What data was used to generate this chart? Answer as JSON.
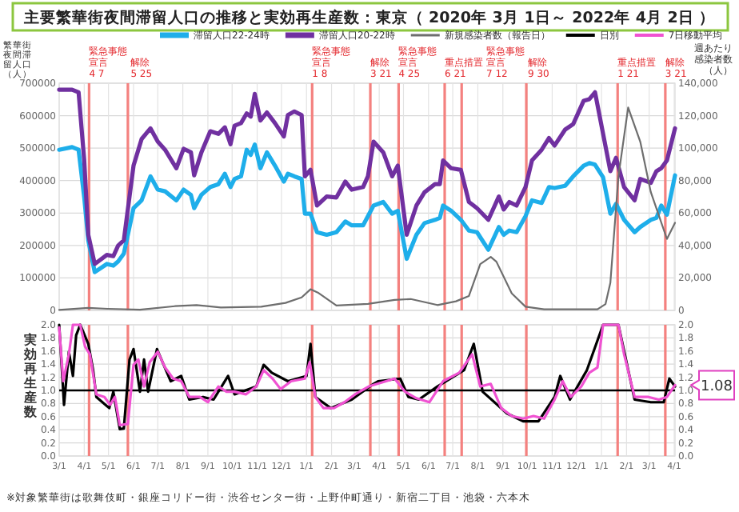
{
  "chart_data": [
    {
      "type": "line",
      "title": "主要繁華街夜間滞留人口の推移と実効再生産数：東京（ 2020年 3月 1日～ 2022年 4月 2日 ）",
      "ylabel": "繁華街夜間滞留人口（人）",
      "y2label": "週あたり感染者数（人）",
      "xlim": [
        "2020-03-01",
        "2022-04-02"
      ],
      "ylim": [
        0,
        700000
      ],
      "yticks": [
        0,
        100000,
        200000,
        300000,
        400000,
        500000,
        600000,
        700000
      ],
      "y2lim": [
        0,
        140000
      ],
      "y2ticks": [
        0,
        {
          "value": 20000,
          "label": "20,000"
        },
        {
          "value": 40000,
          "label": "40,000"
        },
        {
          "value": 60000,
          "label": "60,000"
        },
        {
          "value": 80000,
          "label": "80,000"
        },
        {
          "value": 100000,
          "label": "100,000"
        },
        {
          "value": 120000,
          "label": "120,000"
        },
        {
          "value": 140000,
          "label": "140,000"
        }
      ],
      "xticks": [
        {
          "value": "2020-03-01",
          "label": null
        },
        {
          "value": "2020-04-01",
          "label": null
        },
        {
          "value": "2020-05-01",
          "label": null
        },
        {
          "value": "2020-06-01",
          "label": null
        },
        {
          "value": "2020-07-01",
          "label": null
        },
        {
          "value": "2020-08-01",
          "label": null
        },
        {
          "value": "2020-09-01",
          "label": null
        },
        {
          "value": "2020-10-01",
          "label": null
        },
        {
          "value": "2020-11-01",
          "label": null
        },
        {
          "value": "2020-12-01",
          "label": null
        },
        {
          "value": "2021-01-01",
          "label": null
        },
        {
          "value": "2021-02-01",
          "label": null
        },
        {
          "value": "2021-03-01",
          "label": null
        },
        {
          "value": "2021-04-01",
          "label": null
        },
        {
          "value": "2021-05-01",
          "label": null
        },
        {
          "value": "2021-06-01",
          "label": null
        },
        {
          "value": "2021-07-01",
          "label": null
        },
        {
          "value": "2021-08-01",
          "label": null
        },
        {
          "value": "2021-09-01",
          "label": null
        },
        {
          "value": "2021-10-01",
          "label": null
        },
        {
          "value": "2021-11-01",
          "label": null
        },
        {
          "value": "2021-12-01",
          "label": null
        },
        {
          "value": "2022-01-01",
          "label": null
        },
        {
          "value": "2022-02-01",
          "label": null
        },
        {
          "value": "2022-03-01",
          "label": null
        },
        {
          "value": "2022-04-01",
          "label": null
        }
      ],
      "tick_labels": "y",
      "grid": true,
      "legend": "top",
      "x": [
        "2020-03-01",
        "2020-03-17",
        "2020-03-25",
        "2020-04-01",
        "2020-04-06",
        "2020-04-14",
        "2020-04-29",
        "2020-05-07",
        "2020-05-13",
        "2020-05-20",
        "2020-06-01",
        "2020-06-11",
        "2020-06-22",
        "2020-07-01",
        "2020-07-10",
        "2020-07-24",
        "2020-08-02",
        "2020-08-11",
        "2020-08-15",
        "2020-08-24",
        "2020-09-04",
        "2020-09-14",
        "2020-09-22",
        "2020-09-29",
        "2020-10-04",
        "2020-10-12",
        "2020-10-19",
        "2020-10-24",
        "2020-10-29",
        "2020-11-05",
        "2020-11-13",
        "2020-11-23",
        "2020-12-04",
        "2020-12-09",
        "2020-12-17",
        "2020-12-26",
        "2020-12-30",
        "2021-01-06",
        "2021-01-14",
        "2021-01-26",
        "2021-02-07",
        "2021-02-18",
        "2021-02-26",
        "2021-03-12",
        "2021-03-18",
        "2021-03-25",
        "2021-04-06",
        "2021-04-17",
        "2021-04-24",
        "2021-05-05",
        "2021-05-17",
        "2021-05-27",
        "2021-06-09",
        "2021-06-15",
        "2021-06-19",
        "2021-06-29",
        "2021-07-11",
        "2021-07-21",
        "2021-07-31",
        "2021-08-14",
        "2021-08-27",
        "2021-09-02",
        "2021-09-09",
        "2021-09-18",
        "2021-09-29",
        "2021-10-07",
        "2021-10-19",
        "2021-10-28",
        "2021-11-04",
        "2021-11-17",
        "2021-11-27",
        "2021-12-10",
        "2021-12-17",
        "2021-12-24",
        "2022-01-03",
        "2022-01-12",
        "2022-01-19",
        "2022-01-29",
        "2022-02-11",
        "2022-02-18",
        "2022-03-03",
        "2022-03-10",
        "2022-03-16",
        "2022-03-23",
        "2022-04-02"
      ],
      "series": [
        {
          "name": "滞留人口22-24時",
          "color": "#1eaeea",
          "values": [
            495000,
            503000,
            495000,
            348000,
            216000,
            118000,
            143000,
            138000,
            151000,
            175000,
            315000,
            339000,
            413000,
            372000,
            367000,
            339000,
            372000,
            356000,
            315000,
            356000,
            380000,
            389000,
            421000,
            380000,
            405000,
            413000,
            495000,
            479000,
            511000,
            438000,
            487000,
            446000,
            397000,
            421000,
            413000,
            405000,
            298000,
            298000,
            241000,
            233000,
            241000,
            274000,
            262000,
            262000,
            290000,
            323000,
            334000,
            298000,
            307000,
            159000,
            233000,
            269000,
            279000,
            285000,
            323000,
            307000,
            279000,
            246000,
            241000,
            187000,
            257000,
            233000,
            246000,
            241000,
            290000,
            339000,
            331000,
            380000,
            377000,
            384000,
            413000,
            446000,
            454000,
            449000,
            410000,
            298000,
            328000,
            279000,
            241000,
            257000,
            279000,
            285000,
            323000,
            295000,
            416000
          ]
        },
        {
          "name": "滞留人口20-22時",
          "color": "#7030a0",
          "values": [
            680000,
            680000,
            672000,
            462000,
            233000,
            143000,
            171000,
            167000,
            200000,
            216000,
            446000,
            528000,
            561000,
            520000,
            495000,
            438000,
            498000,
            487000,
            416000,
            487000,
            552000,
            544000,
            564000,
            512000,
            569000,
            577000,
            607000,
            597000,
            667000,
            585000,
            610000,
            577000,
            536000,
            602000,
            613000,
            602000,
            413000,
            433000,
            323000,
            351000,
            348000,
            397000,
            372000,
            380000,
            413000,
            520000,
            487000,
            413000,
            446000,
            233000,
            323000,
            364000,
            389000,
            389000,
            462000,
            438000,
            433000,
            334000,
            315000,
            279000,
            351000,
            311000,
            334000,
            323000,
            380000,
            462000,
            495000,
            531000,
            508000,
            557000,
            574000,
            646000,
            651000,
            672000,
            544000,
            429000,
            470000,
            380000,
            339000,
            405000,
            393000,
            429000,
            438000,
            462000,
            561000
          ]
        },
        {
          "name": "新規感染者数（報告日）",
          "color": "#6e6e6e",
          "axis": "y2",
          "x": [
            "2020-03-01",
            "2020-04-06",
            "2020-04-30",
            "2020-06-09",
            "2020-07-22",
            "2020-08-18",
            "2020-09-17",
            "2020-11-06",
            "2020-12-06",
            "2020-12-26",
            "2021-01-06",
            "2021-01-15",
            "2021-02-07",
            "2021-03-18",
            "2021-04-20",
            "2021-05-10",
            "2021-06-12",
            "2021-07-05",
            "2021-07-21",
            "2021-08-04",
            "2021-08-17",
            "2021-08-24",
            "2021-09-12",
            "2021-09-29",
            "2021-10-22",
            "2021-12-27",
            "2022-01-06",
            "2022-01-12",
            "2022-01-22",
            "2022-02-03",
            "2022-02-18",
            "2022-03-03",
            "2022-03-23",
            "2022-04-02"
          ],
          "values": [
            300,
            1500,
            1000,
            400,
            2600,
            3300,
            1800,
            2300,
            4600,
            8000,
            13000,
            11000,
            3000,
            4000,
            6500,
            7000,
            3300,
            5600,
            8900,
            28500,
            33000,
            30000,
            10500,
            2300,
            700,
            700,
            3900,
            17000,
            82600,
            125000,
            104000,
            73000,
            44000,
            54000
          ]
        }
      ],
      "ref_lines": [
        {
          "axis": "x",
          "value": "2020-04-07",
          "label": "緊急事態宣言 4 7",
          "color": "#f4817f"
        },
        {
          "axis": "x",
          "value": "2020-05-25",
          "label": "解除 5 25",
          "color": "#f4817f"
        },
        {
          "axis": "x",
          "value": "2021-01-08",
          "label": "緊急事態宣言 1 8",
          "color": "#f4817f"
        },
        {
          "axis": "x",
          "value": "2021-03-21",
          "label": "解除 3 21",
          "color": "#f4817f"
        },
        {
          "axis": "x",
          "value": "2021-04-25",
          "label": "緊急事態宣言 4 25",
          "color": "#f4817f"
        },
        {
          "axis": "x",
          "value": "2021-06-21",
          "label": "重点措置 6 21",
          "color": "#f4817f"
        },
        {
          "axis": "x",
          "value": "2021-07-12",
          "label": "緊急事態宣言 7 12",
          "color": "#f4817f"
        },
        {
          "axis": "x",
          "value": "2021-09-30",
          "label": "解除 9 30",
          "color": "#f4817f"
        },
        {
          "axis": "x",
          "value": "2022-01-21",
          "label": "重点措置 1 21",
          "color": "#f4817f"
        },
        {
          "axis": "x",
          "value": "2022-03-21",
          "label": "解除 3 21",
          "color": "#f4817f"
        }
      ]
    },
    {
      "type": "line",
      "ylabel": "実効再生産数",
      "xlim": [
        "2020-03-01",
        "2022-04-02"
      ],
      "ylim": [
        0,
        2
      ],
      "yticks": [
        {
          "value": 0,
          "label": "0.0"
        },
        {
          "value": 0.2,
          "label": "0.2"
        },
        {
          "value": 0.4,
          "label": "0.4"
        },
        {
          "value": 0.6,
          "label": "0.6"
        },
        {
          "value": 0.8,
          "label": "0.8"
        },
        {
          "value": 1,
          "label": "1.0"
        },
        {
          "value": 1.2,
          "label": "1.2"
        },
        {
          "value": 1.4,
          "label": "1.4"
        },
        {
          "value": 1.6,
          "label": "1.6"
        },
        {
          "value": 1.8,
          "label": "1.8"
        },
        {
          "value": 2,
          "label": "2.0"
        }
      ],
      "y2lim": [
        0,
        2
      ],
      "y2ticks": [
        {
          "value": 0,
          "label": "0.0"
        },
        {
          "value": 0.2,
          "label": "0.2"
        },
        {
          "value": 0.4,
          "label": "0.4"
        },
        {
          "value": 0.6,
          "label": "0.6"
        },
        {
          "value": 0.8,
          "label": "0.8"
        },
        {
          "value": 1,
          "label": "1.0"
        },
        {
          "value": 1.2,
          "label": "1.2"
        },
        {
          "value": 1.4,
          "label": "1.4"
        },
        {
          "value": 1.6,
          "label": "1.6"
        },
        {
          "value": 1.8,
          "label": "1.8"
        },
        {
          "value": 2,
          "label": "2.0"
        }
      ],
      "xticks": [
        {
          "value": "2020-03-01",
          "label": "3/1"
        },
        {
          "value": "2020-04-01",
          "label": "4/1"
        },
        {
          "value": "2020-05-01",
          "label": "5/1"
        },
        {
          "value": "2020-06-01",
          "label": "6/1"
        },
        {
          "value": "2020-07-01",
          "label": "7/1"
        },
        {
          "value": "2020-08-01",
          "label": "8/1"
        },
        {
          "value": "2020-09-01",
          "label": "9/1"
        },
        {
          "value": "2020-10-01",
          "label": "10/1"
        },
        {
          "value": "2020-11-01",
          "label": "11/1"
        },
        {
          "value": "2020-12-01",
          "label": "12/1"
        },
        {
          "value": "2021-01-01",
          "label": "1/1"
        },
        {
          "value": "2021-02-01",
          "label": "2/1"
        },
        {
          "value": "2021-03-01",
          "label": "3/1"
        },
        {
          "value": "2021-04-01",
          "label": "4/1"
        },
        {
          "value": "2021-05-01",
          "label": "5/1"
        },
        {
          "value": "2021-06-01",
          "label": "6/1"
        },
        {
          "value": "2021-07-01",
          "label": "7/1"
        },
        {
          "value": "2021-08-01",
          "label": "8/1"
        },
        {
          "value": "2021-09-01",
          "label": "9/1"
        },
        {
          "value": "2021-10-01",
          "label": "10/1"
        },
        {
          "value": "2021-11-01",
          "label": "11/1"
        },
        {
          "value": "2021-12-01",
          "label": "12/1"
        },
        {
          "value": "2022-01-01",
          "label": "1/1"
        },
        {
          "value": "2022-02-01",
          "label": "2/1"
        },
        {
          "value": "2022-03-01",
          "label": "3/1"
        },
        {
          "value": "2022-04-01",
          "label": "4/1"
        }
      ],
      "grid": true,
      "legend": "top",
      "series": [
        {
          "name": "日別",
          "color": "#000000",
          "x": [
            "2020-03-01",
            "2020-03-07",
            "2020-03-13",
            "2020-03-18",
            "2020-03-22",
            "2020-03-27",
            "2020-04-06",
            "2020-04-12",
            "2020-04-16",
            "2020-05-02",
            "2020-05-07",
            "2020-05-15",
            "2020-05-20",
            "2020-05-27",
            "2020-06-01",
            "2020-06-09",
            "2020-06-14",
            "2020-06-19",
            "2020-06-30",
            "2020-07-17",
            "2020-07-30",
            "2020-08-09",
            "2020-08-26",
            "2020-09-08",
            "2020-09-26",
            "2020-10-04",
            "2020-10-31",
            "2020-11-09",
            "2020-11-19",
            "2020-12-09",
            "2021-01-01",
            "2021-01-06",
            "2021-01-12",
            "2021-01-31",
            "2021-02-26",
            "2021-03-25",
            "2021-03-31",
            "2021-04-27",
            "2021-05-07",
            "2021-05-20",
            "2021-06-12",
            "2021-07-15",
            "2021-07-27",
            "2021-08-07",
            "2021-09-06",
            "2021-09-26",
            "2021-10-15",
            "2021-11-04",
            "2021-11-11",
            "2021-11-23",
            "2021-12-14",
            "2022-01-03",
            "2022-01-22",
            "2022-02-11",
            "2022-03-03",
            "2022-03-19",
            "2022-03-26",
            "2022-04-02"
          ],
          "values": [
            2.0,
            0.78,
            1.59,
            1.22,
            1.84,
            2.0,
            1.71,
            1.31,
            0.9,
            0.73,
            0.98,
            0.41,
            0.42,
            1.47,
            1.63,
            0.98,
            1.47,
            0.98,
            1.63,
            1.14,
            1.22,
            0.86,
            0.9,
            0.86,
            1.22,
            0.94,
            1.06,
            1.39,
            1.27,
            1.14,
            1.22,
            1.71,
            0.9,
            0.73,
            0.86,
            1.1,
            1.14,
            1.18,
            0.9,
            0.86,
            1.06,
            1.31,
            1.71,
            0.98,
            0.65,
            0.53,
            0.53,
            0.9,
            1.22,
            0.86,
            1.31,
            2.0,
            2.0,
            0.86,
            0.82,
            0.82,
            1.18,
            1.06
          ]
        },
        {
          "name": "7日移動平均",
          "color": "#f052d2",
          "x": [
            "2020-03-01",
            "2020-03-06",
            "2020-03-13",
            "2020-03-18",
            "2020-03-27",
            "2020-04-02",
            "2020-04-08",
            "2020-04-16",
            "2020-04-26",
            "2020-05-03",
            "2020-05-09",
            "2020-05-15",
            "2020-05-25",
            "2020-06-01",
            "2020-06-07",
            "2020-06-14",
            "2020-06-21",
            "2020-07-01",
            "2020-07-10",
            "2020-07-20",
            "2020-07-30",
            "2020-08-09",
            "2020-08-22",
            "2020-09-01",
            "2020-09-14",
            "2020-09-24",
            "2020-10-04",
            "2020-10-18",
            "2020-10-31",
            "2020-11-09",
            "2020-11-20",
            "2020-11-30",
            "2020-12-13",
            "2020-12-30",
            "2021-01-05",
            "2021-01-12",
            "2021-01-22",
            "2021-02-04",
            "2021-02-17",
            "2021-03-02",
            "2021-03-19",
            "2021-04-07",
            "2021-04-20",
            "2021-05-03",
            "2021-05-17",
            "2021-06-02",
            "2021-06-19",
            "2021-07-09",
            "2021-07-25",
            "2021-08-04",
            "2021-08-17",
            "2021-08-30",
            "2021-09-12",
            "2021-09-26",
            "2021-10-09",
            "2021-10-22",
            "2021-11-04",
            "2021-11-14",
            "2021-11-24",
            "2021-12-07",
            "2021-12-17",
            "2021-12-27",
            "2022-01-03",
            "2022-01-22",
            "2022-01-29",
            "2022-02-11",
            "2022-02-28",
            "2022-03-13",
            "2022-03-23",
            "2022-04-02"
          ],
          "values": [
            1.96,
            1.14,
            1.55,
            2.0,
            2.0,
            1.67,
            1.55,
            0.94,
            0.9,
            0.78,
            0.9,
            0.47,
            0.49,
            1.39,
            1.47,
            1.06,
            1.43,
            1.59,
            1.35,
            1.18,
            1.14,
            0.9,
            0.9,
            0.82,
            1.06,
            0.98,
            0.98,
            0.94,
            1.06,
            1.31,
            1.18,
            1.02,
            1.14,
            1.18,
            1.43,
            0.9,
            0.73,
            0.73,
            0.82,
            0.94,
            1.06,
            1.13,
            1.18,
            0.98,
            0.88,
            0.82,
            1.14,
            1.27,
            1.55,
            1.06,
            1.1,
            0.73,
            0.61,
            0.57,
            0.61,
            0.57,
            0.86,
            1.14,
            0.9,
            1.06,
            1.27,
            1.35,
            2.0,
            2.0,
            1.55,
            0.9,
            0.9,
            0.86,
            0.9,
            1.08
          ]
        }
      ],
      "ref_lines": [
        {
          "axis": "x",
          "value": "2020-04-07",
          "label": null,
          "color": "#f4817f"
        },
        {
          "axis": "x",
          "value": "2020-05-25",
          "label": null,
          "color": "#f4817f"
        },
        {
          "axis": "x",
          "value": "2021-01-08",
          "label": null,
          "color": "#f4817f"
        },
        {
          "axis": "x",
          "value": "2021-03-21",
          "label": null,
          "color": "#f4817f"
        },
        {
          "axis": "x",
          "value": "2021-04-25",
          "label": null,
          "color": "#f4817f"
        },
        {
          "axis": "x",
          "value": "2021-06-21",
          "label": null,
          "color": "#f4817f"
        },
        {
          "axis": "x",
          "value": "2021-07-12",
          "label": null,
          "color": "#f4817f"
        },
        {
          "axis": "x",
          "value": "2021-09-30",
          "label": null,
          "color": "#f4817f"
        },
        {
          "axis": "x",
          "value": "2022-01-21",
          "label": null,
          "color": "#f4817f"
        },
        {
          "axis": "x",
          "value": "2022-03-21",
          "label": null,
          "color": "#f4817f"
        },
        {
          "axis": "y",
          "value": 1,
          "label": null,
          "color": "#000000"
        }
      ],
      "annotations": [
        {
          "text": "1.08",
          "x": "2022-04-02",
          "y": 1.08
        },
        "※対象繁華街は歌舞伎町・銀座コリドー街・渋谷センター街・上野仲町通り・新宿二丁目・池袋・六本木"
      ]
    }
  ]
}
